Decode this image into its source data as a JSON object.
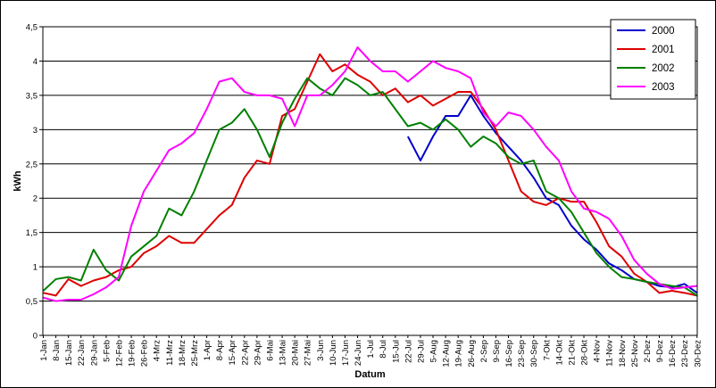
{
  "chart_data": {
    "type": "line",
    "title": "",
    "xlabel": "Datum",
    "ylabel": "kWh",
    "ylim": [
      0,
      4.5
    ],
    "yticks": [
      "0",
      "0,5",
      "1",
      "1,5",
      "2",
      "2,5",
      "3",
      "3,5",
      "4",
      "4,5"
    ],
    "grid": "horizontal",
    "legend_position": "top-right",
    "categories": [
      "1-Jan",
      "8-Jan",
      "15-Jan",
      "22-Jan",
      "29-Jan",
      "5-Feb",
      "12-Feb",
      "19-Feb",
      "26-Feb",
      "4-Mrz",
      "11-Mrz",
      "18-Mrz",
      "25-Mrz",
      "1-Apr",
      "8-Apr",
      "15-Apr",
      "22-Apr",
      "29-Apr",
      "6-Mai",
      "13-Mai",
      "20-Mai",
      "27-Mai",
      "3-Jun",
      "10-Jun",
      "17-Jun",
      "24-Jun",
      "1-Jul",
      "8-Jul",
      "15-Jul",
      "22-Jul",
      "29-Jul",
      "5-Aug",
      "12-Aug",
      "19-Aug",
      "26-Aug",
      "2-Sep",
      "9-Sep",
      "16-Sep",
      "23-Sep",
      "30-Sep",
      "7-Okt",
      "14-Okt",
      "21-Okt",
      "28-Okt",
      "4-Nov",
      "11-Nov",
      "18-Nov",
      "25-Nov",
      "2-Dez",
      "9-Dez",
      "16-Dez",
      "23-Dez",
      "30-Dez"
    ],
    "series": [
      {
        "name": "2000",
        "color": "#0000cc",
        "values": [
          null,
          null,
          null,
          null,
          null,
          null,
          null,
          null,
          null,
          null,
          null,
          null,
          null,
          null,
          null,
          null,
          null,
          null,
          null,
          null,
          null,
          null,
          null,
          null,
          null,
          null,
          null,
          null,
          null,
          2.9,
          2.55,
          2.9,
          3.2,
          3.2,
          3.5,
          3.2,
          2.95,
          2.75,
          2.55,
          2.3,
          2.0,
          1.9,
          1.6,
          1.4,
          1.25,
          1.05,
          0.95,
          0.82,
          0.78,
          0.72,
          0.7,
          0.75,
          0.62
        ]
      },
      {
        "name": "2001",
        "color": "#dd0000",
        "values": [
          0.62,
          0.58,
          0.82,
          0.72,
          0.8,
          0.85,
          0.95,
          1.0,
          1.2,
          1.3,
          1.45,
          1.35,
          1.35,
          1.55,
          1.75,
          1.9,
          2.3,
          2.55,
          2.5,
          3.2,
          3.3,
          3.7,
          4.1,
          3.85,
          3.95,
          3.8,
          3.7,
          3.5,
          3.6,
          3.4,
          3.5,
          3.35,
          3.45,
          3.55,
          3.55,
          3.3,
          3.0,
          2.55,
          2.1,
          1.95,
          1.9,
          2.0,
          1.95,
          1.95,
          1.65,
          1.3,
          1.15,
          0.9,
          0.78,
          0.62,
          0.65,
          0.62,
          0.58
        ]
      },
      {
        "name": "2002",
        "color": "#008000",
        "values": [
          0.65,
          0.82,
          0.85,
          0.8,
          1.25,
          0.95,
          0.8,
          1.15,
          1.3,
          1.45,
          1.85,
          1.75,
          2.1,
          2.55,
          3.0,
          3.1,
          3.3,
          3.0,
          2.6,
          3.1,
          3.45,
          3.75,
          3.6,
          3.5,
          3.75,
          3.65,
          3.5,
          3.55,
          3.3,
          3.05,
          3.1,
          3.0,
          3.15,
          3.0,
          2.75,
          2.9,
          2.8,
          2.6,
          2.5,
          2.55,
          2.1,
          2.0,
          1.8,
          1.5,
          1.2,
          1.0,
          0.85,
          0.82,
          0.78,
          0.75,
          0.72,
          0.7,
          0.58
        ]
      },
      {
        "name": "2003",
        "color": "#ff00ff",
        "values": [
          0.55,
          0.5,
          0.52,
          0.52,
          0.6,
          0.7,
          0.85,
          1.6,
          2.1,
          2.4,
          2.7,
          2.8,
          2.95,
          3.3,
          3.7,
          3.75,
          3.55,
          3.5,
          3.5,
          3.45,
          3.05,
          3.5,
          3.5,
          3.65,
          3.85,
          4.2,
          4.0,
          3.85,
          3.85,
          3.7,
          3.85,
          4.0,
          3.9,
          3.85,
          3.75,
          3.25,
          3.05,
          3.25,
          3.2,
          3.0,
          2.75,
          2.55,
          2.1,
          1.85,
          1.8,
          1.7,
          1.45,
          1.1,
          0.9,
          0.75,
          0.68,
          0.7,
          0.72
        ]
      }
    ]
  }
}
